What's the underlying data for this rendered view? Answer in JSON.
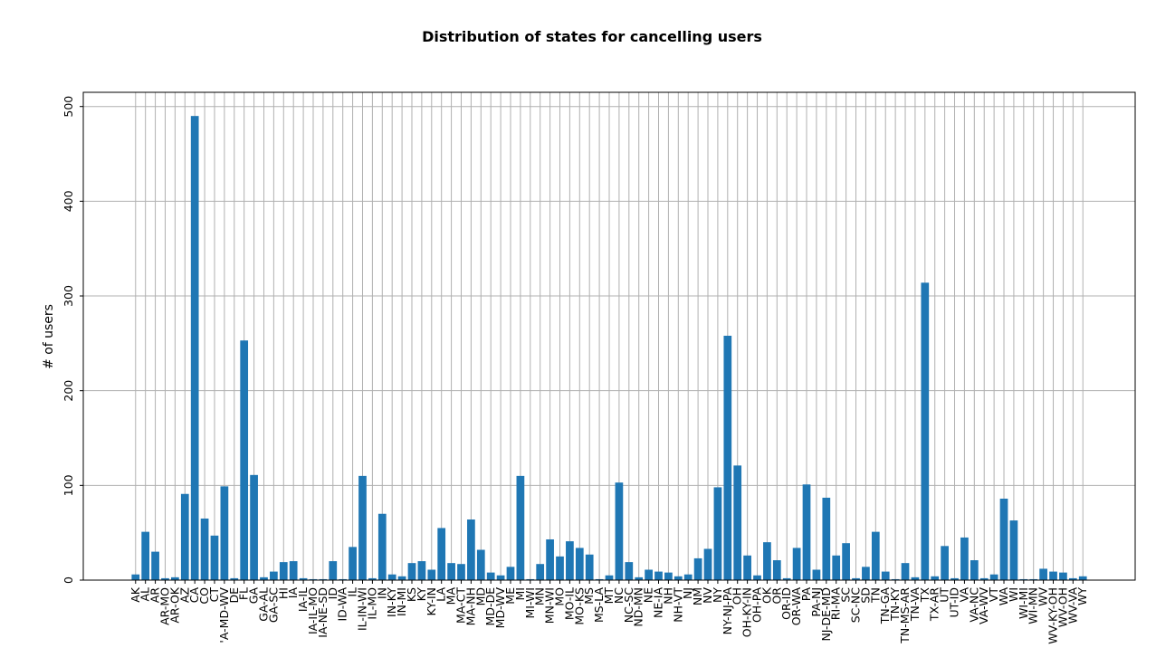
{
  "chart_data": {
    "type": "bar",
    "title": "Distribution of states for cancelling users",
    "xlabel": "",
    "ylabel": "# of users",
    "ylim": [
      0,
      515
    ],
    "yticks": [
      0,
      100,
      200,
      300,
      400,
      500
    ],
    "grid": true,
    "bar_color": "#1f77b4",
    "categories": [
      "AK",
      "AL",
      "AR",
      "AR-MO",
      "AR-OK",
      "AZ",
      "CA",
      "CO",
      "CT",
      "DC-VA-MD-WV",
      "DE",
      "FL",
      "GA",
      "GA-AL",
      "GA-SC",
      "HI",
      "IA",
      "IA-IL",
      "IA-IL-MO",
      "IA-NE-SD",
      "ID",
      "ID-WA",
      "IL",
      "IL-IN-WI",
      "IL-MO",
      "IN",
      "IN-KY",
      "IN-MI",
      "KS",
      "KY",
      "KY-IN",
      "LA",
      "MA",
      "MA-CT",
      "MA-NH",
      "MD",
      "MD-DE",
      "MD-WV",
      "ME",
      "MI",
      "MI-WI",
      "MN",
      "MN-WI",
      "MO",
      "MO-IL",
      "MO-KS",
      "MS",
      "MS-LA",
      "MT",
      "NC",
      "NC-SC",
      "ND-MN",
      "NE",
      "NE-IA",
      "NH",
      "NH-VT",
      "NJ",
      "NM",
      "NV",
      "NY",
      "NY-NJ-PA",
      "OH",
      "OH-KY-IN",
      "OH-PA",
      "OK",
      "OR",
      "OR-ID",
      "OR-WA",
      "PA",
      "PA-NJ",
      "PA-NJ-DE-MD",
      "RI-MA",
      "SC",
      "SC-NC",
      "SD",
      "TN",
      "TN-GA",
      "TN-KY",
      "TN-MS-AR",
      "TN-VA",
      "TX",
      "TX-AR",
      "UT",
      "UT-ID",
      "VA",
      "VA-NC",
      "VA-WV",
      "VT",
      "WA",
      "WI",
      "WI-MI",
      "WI-MN",
      "WV",
      "WV-KY-OH",
      "WV-OH",
      "WV-VA",
      "WY"
    ],
    "tick_labels": [
      "AK",
      "AL",
      "AR",
      "AR-MO",
      "AR-OK",
      "AZ",
      "CA",
      "CO",
      "CT",
      "'A-MD-WV",
      "DE",
      "FL",
      "GA",
      "GA-AL",
      "GA-SC",
      "HI",
      "IA",
      "IA-IL",
      "IA-IL-MO",
      "IA-NE-SD",
      "ID",
      "ID-WA",
      "IL",
      "IL-IN-WI",
      "IL-MO",
      "IN",
      "IN-KY",
      "IN-MI",
      "KS",
      "KY",
      "KY-IN",
      "LA",
      "MA",
      "MA-CT",
      "MA-NH",
      "MD",
      "MD-DE",
      "MD-WV",
      "ME",
      "MI",
      "MI-WI",
      "MN",
      "MN-WI",
      "MO",
      "MO-IL",
      "MO-KS",
      "MS",
      "MS-LA",
      "MT",
      "NC",
      "NC-SC",
      "ND-MN",
      "NE",
      "NE-IA",
      "NH",
      "NH-VT",
      "NJ",
      "NM",
      "NV",
      "NY",
      "NY-NJ-PA",
      "OH",
      "OH-KY-IN",
      "OH-PA",
      "OK",
      "OR",
      "OR-ID",
      "OR-WA",
      "PA",
      "PA-NJ",
      "NJ-DE-MD",
      "RI-MA",
      "SC",
      "SC-NC",
      "SD",
      "TN",
      "TN-GA",
      "TN-KY",
      "TN-MS-AR",
      "TN-VA",
      "TX",
      "TX-AR",
      "UT",
      "UT-ID",
      "VA",
      "VA-NC",
      "VA-WV",
      "VT",
      "WA",
      "WI",
      "WI-MI",
      "WI-MN",
      "WV",
      "WV-KY-OH",
      "WV-OH",
      "WV-VA",
      "WY"
    ],
    "values": [
      6,
      51,
      30,
      2,
      3,
      91,
      490,
      65,
      47,
      99,
      2,
      253,
      111,
      3,
      9,
      19,
      20,
      2,
      1,
      1,
      20,
      1,
      35,
      110,
      2,
      70,
      6,
      4,
      18,
      20,
      11,
      55,
      18,
      17,
      64,
      32,
      8,
      5,
      14,
      110,
      1,
      17,
      43,
      25,
      41,
      34,
      27,
      1,
      5,
      103,
      19,
      3,
      11,
      9,
      8,
      4,
      6,
      23,
      33,
      98,
      258,
      121,
      26,
      5,
      40,
      21,
      2,
      34,
      101,
      11,
      87,
      26,
      39,
      2,
      14,
      51,
      9,
      1,
      18,
      3,
      314,
      4,
      36,
      2,
      45,
      21,
      2,
      6,
      86,
      63,
      1,
      1,
      12,
      9,
      8,
      2,
      4
    ]
  }
}
